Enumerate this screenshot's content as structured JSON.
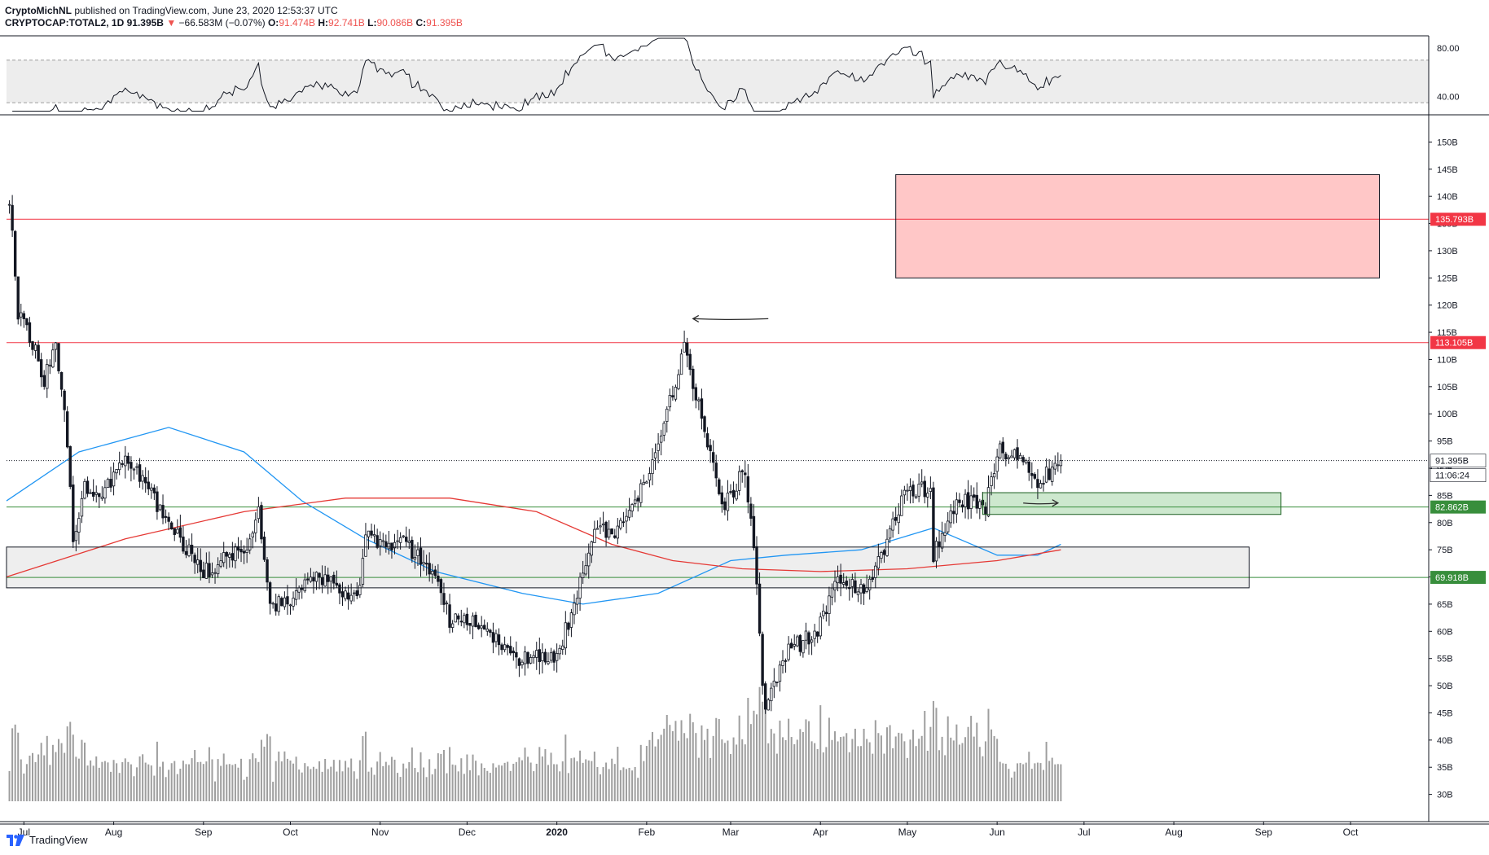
{
  "header": {
    "author": "CryptoMichNL",
    "published_text": "published on TradingView.com, June 23, 2020 12:53:37 UTC",
    "symbol": "CRYPTOCAP:TOTAL2, 1D",
    "last": "91.395B",
    "change_arrow": "▼",
    "change": "−66.583M (−0.07%)",
    "open_label": "O:",
    "open": "91.474B",
    "high_label": "H:",
    "high": "92.741B",
    "low_label": "L:",
    "low": "90.086B",
    "close_label": "C:",
    "close": "91.395B"
  },
  "footer": {
    "brand": "TradingView",
    "logo_icon": "tradingview-logo-icon"
  },
  "colors": {
    "resistance_line": "#f23645",
    "support_line": "#388e3c",
    "resistance_zone": "#ffc1c1",
    "support_zone": "#c8e6c9",
    "range_zone": "#e8e8e8",
    "ma_blue": "#2196f3",
    "ma_red": "#e53935"
  },
  "chart_data": [
    {
      "type": "candlestick",
      "panel": "price",
      "y_unit": "B",
      "ylim": [
        25,
        155
      ],
      "y_ticks": [
        "30B",
        "35B",
        "40B",
        "45B",
        "50B",
        "55B",
        "60B",
        "65B",
        "70B",
        "75B",
        "80B",
        "85B",
        "90B",
        "95B",
        "100B",
        "105B",
        "110B",
        "115B",
        "120B",
        "125B",
        "130B",
        "135B",
        "140B",
        "145B",
        "150B"
      ],
      "y_tick_values": [
        30,
        35,
        40,
        45,
        50,
        55,
        60,
        65,
        70,
        75,
        80,
        85,
        90,
        95,
        100,
        105,
        110,
        115,
        120,
        125,
        130,
        135,
        140,
        145,
        150
      ],
      "x_ticks": [
        "Jul",
        "Aug",
        "Sep",
        "Oct",
        "Nov",
        "Dec",
        "2020",
        "Feb",
        "Mar",
        "Apr",
        "May",
        "Jun",
        "Jul",
        "Aug",
        "Sep",
        "Oct"
      ],
      "x_tick_dates": [
        "2019-07-01",
        "2019-08-01",
        "2019-09-01",
        "2019-10-01",
        "2019-11-01",
        "2019-12-01",
        "2020-01-01",
        "2020-02-01",
        "2020-03-01",
        "2020-04-01",
        "2020-05-01",
        "2020-06-01",
        "2020-07-01",
        "2020-08-01",
        "2020-09-01",
        "2020-10-01"
      ],
      "x_range": [
        "2019-06-25",
        "2020-10-28"
      ],
      "anchors": [
        {
          "date": "2019-06-26",
          "close": 140
        },
        {
          "date": "2019-06-29",
          "close": 118
        },
        {
          "date": "2019-07-04",
          "close": 113
        },
        {
          "date": "2019-07-08",
          "close": 106
        },
        {
          "date": "2019-07-12",
          "close": 114
        },
        {
          "date": "2019-07-16",
          "close": 95
        },
        {
          "date": "2019-07-18",
          "close": 77
        },
        {
          "date": "2019-07-22",
          "close": 87
        },
        {
          "date": "2019-07-28",
          "close": 85
        },
        {
          "date": "2019-08-06",
          "close": 92
        },
        {
          "date": "2019-08-14",
          "close": 85
        },
        {
          "date": "2019-08-20",
          "close": 79
        },
        {
          "date": "2019-08-25",
          "close": 76
        },
        {
          "date": "2019-09-01",
          "close": 71
        },
        {
          "date": "2019-09-08",
          "close": 73
        },
        {
          "date": "2019-09-16",
          "close": 75
        },
        {
          "date": "2019-09-20",
          "close": 83
        },
        {
          "date": "2019-09-24",
          "close": 64
        },
        {
          "date": "2019-10-01",
          "close": 66
        },
        {
          "date": "2019-10-10",
          "close": 70
        },
        {
          "date": "2019-10-24",
          "close": 66
        },
        {
          "date": "2019-10-27",
          "close": 77
        },
        {
          "date": "2019-11-05",
          "close": 76
        },
        {
          "date": "2019-11-10",
          "close": 76
        },
        {
          "date": "2019-11-20",
          "close": 70
        },
        {
          "date": "2019-11-25",
          "close": 62
        },
        {
          "date": "2019-12-05",
          "close": 62
        },
        {
          "date": "2019-12-18",
          "close": 55
        },
        {
          "date": "2019-12-31",
          "close": 55
        },
        {
          "date": "2020-01-07",
          "close": 64
        },
        {
          "date": "2020-01-14",
          "close": 80
        },
        {
          "date": "2020-01-20",
          "close": 78
        },
        {
          "date": "2020-01-30",
          "close": 86
        },
        {
          "date": "2020-02-06",
          "close": 96
        },
        {
          "date": "2020-02-14",
          "close": 112
        },
        {
          "date": "2020-02-20",
          "close": 100
        },
        {
          "date": "2020-02-27",
          "close": 82
        },
        {
          "date": "2020-03-06",
          "close": 90
        },
        {
          "date": "2020-03-09",
          "close": 76
        },
        {
          "date": "2020-03-12",
          "close": 50
        },
        {
          "date": "2020-03-13",
          "close": 46
        },
        {
          "date": "2020-03-20",
          "close": 56
        },
        {
          "date": "2020-03-31",
          "close": 60
        },
        {
          "date": "2020-04-07",
          "close": 70
        },
        {
          "date": "2020-04-16",
          "close": 68
        },
        {
          "date": "2020-04-23",
          "close": 74
        },
        {
          "date": "2020-04-30",
          "close": 86
        },
        {
          "date": "2020-05-09",
          "close": 86
        },
        {
          "date": "2020-05-10",
          "close": 74
        },
        {
          "date": "2020-05-18",
          "close": 84
        },
        {
          "date": "2020-05-28",
          "close": 83
        },
        {
          "date": "2020-06-02",
          "close": 93
        },
        {
          "date": "2020-06-10",
          "close": 92
        },
        {
          "date": "2020-06-14",
          "close": 87
        },
        {
          "date": "2020-06-23",
          "close": 91.4
        }
      ],
      "ma_blue": [
        {
          "date": "2019-06-25",
          "v": 84
        },
        {
          "date": "2019-07-20",
          "v": 93
        },
        {
          "date": "2019-08-20",
          "v": 97.5
        },
        {
          "date": "2019-09-15",
          "v": 93
        },
        {
          "date": "2019-10-05",
          "v": 84
        },
        {
          "date": "2019-10-27",
          "v": 77
        },
        {
          "date": "2019-11-20",
          "v": 71
        },
        {
          "date": "2019-12-20",
          "v": 67
        },
        {
          "date": "2020-01-10",
          "v": 65
        },
        {
          "date": "2020-02-05",
          "v": 67
        },
        {
          "date": "2020-03-01",
          "v": 73
        },
        {
          "date": "2020-03-20",
          "v": 74
        },
        {
          "date": "2020-04-15",
          "v": 75
        },
        {
          "date": "2020-05-10",
          "v": 79
        },
        {
          "date": "2020-06-01",
          "v": 74
        },
        {
          "date": "2020-06-15",
          "v": 74
        },
        {
          "date": "2020-06-23",
          "v": 76
        }
      ],
      "ma_red": [
        {
          "date": "2019-06-25",
          "v": 70
        },
        {
          "date": "2019-08-05",
          "v": 77
        },
        {
          "date": "2019-09-15",
          "v": 82
        },
        {
          "date": "2019-10-20",
          "v": 84.5
        },
        {
          "date": "2019-11-25",
          "v": 84.5
        },
        {
          "date": "2019-12-25",
          "v": 82
        },
        {
          "date": "2020-01-20",
          "v": 76
        },
        {
          "date": "2020-02-10",
          "v": 73
        },
        {
          "date": "2020-03-05",
          "v": 71.5
        },
        {
          "date": "2020-04-01",
          "v": 71
        },
        {
          "date": "2020-05-01",
          "v": 71.5
        },
        {
          "date": "2020-06-01",
          "v": 73
        },
        {
          "date": "2020-06-23",
          "v": 75
        }
      ],
      "horizontal_levels": [
        {
          "value": 135.793,
          "label": "135.793B",
          "kind": "resistance"
        },
        {
          "value": 113.105,
          "label": "113.105B",
          "kind": "resistance"
        },
        {
          "value": 82.862,
          "label": "82.862B",
          "kind": "support"
        },
        {
          "value": 69.918,
          "label": "69.918B",
          "kind": "support"
        }
      ],
      "zones": [
        {
          "kind": "resistance",
          "from_date": "2020-04-27",
          "to_date": "2020-10-11",
          "low": 125,
          "high": 144
        },
        {
          "kind": "support",
          "from_date": "2020-05-27",
          "to_date": "2020-09-07",
          "low": 81.5,
          "high": 85.5
        },
        {
          "kind": "range",
          "from_date": "2019-06-25",
          "to_date": "2020-08-27",
          "low": 68,
          "high": 75.5
        }
      ],
      "last_price": {
        "value": 91.395,
        "label": "91.395B"
      },
      "countdown": "11:06:24",
      "annotations": [
        {
          "kind": "arrow-left",
          "from_date": "2020-03-14",
          "to_date": "2020-02-17",
          "value": 117.5
        },
        {
          "kind": "arrow-right",
          "from_date": "2020-06-10",
          "to_date": "2020-06-22",
          "value": 83.6
        }
      ],
      "volume_scale": [
        0,
        100
      ]
    },
    {
      "type": "line",
      "panel": "rsi",
      "ylim": [
        25,
        90
      ],
      "y_ticks": [
        "80.00",
        "40.00"
      ],
      "y_tick_values": [
        80,
        40
      ],
      "band": [
        35,
        70
      ],
      "series": [
        {
          "values_source": "derived-from-price"
        }
      ]
    }
  ]
}
